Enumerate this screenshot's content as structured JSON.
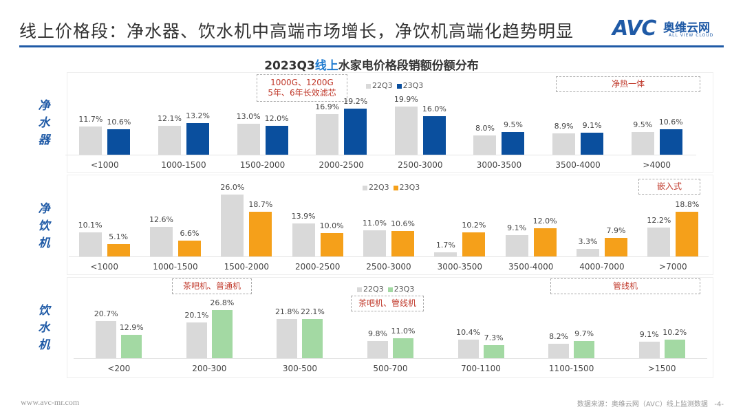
{
  "header": {
    "title": "线上价格段：净水器、饮水机中高端市场增长，净饮机高端化趋势明显",
    "logo": {
      "mark": "AVC",
      "cn": "奥维云网",
      "en": "ALL VIEW CLOUD"
    }
  },
  "subtitle": {
    "pre": "2023Q3",
    "highlight": "线上",
    "post": "水家电价格段销额份额分布"
  },
  "footer": {
    "url": "www.avc-mr.com",
    "source": "数据来源：奥维云网（AVC）线上监测数据",
    "page": "-4-"
  },
  "colors": {
    "prev": "#d9d9d9",
    "purifier": "#0a4f9e",
    "drinking_purifier": "#f5a01a",
    "dispenser": "#a3d9a3",
    "title_rule": "#1f5aa6"
  },
  "chart_data": [
    {
      "type": "bar",
      "row_label": "净水器",
      "legend": [
        "22Q3",
        "23Q3"
      ],
      "notes": [
        "1000G、1200G",
        "5年、6年长效滤芯",
        "净热一体"
      ],
      "categories": [
        "<1000",
        "1000-1500",
        "1500-2000",
        "2000-2500",
        "2500-3000",
        "3000-3500",
        "3500-4000",
        ">4000"
      ],
      "series": [
        {
          "name": "22Q3",
          "values": [
            11.7,
            12.1,
            13.0,
            16.9,
            19.9,
            8.0,
            8.9,
            9.5
          ]
        },
        {
          "name": "23Q3",
          "values": [
            10.6,
            13.2,
            12.0,
            19.2,
            16.0,
            9.5,
            9.1,
            10.6
          ]
        }
      ],
      "unit": "%"
    },
    {
      "type": "bar",
      "row_label": "净饮机",
      "legend": [
        "22Q3",
        "23Q3"
      ],
      "notes": [
        "嵌入式"
      ],
      "categories": [
        "<1000",
        "1000-1500",
        "1500-2000",
        "2000-2500",
        "2500-3000",
        "3000-3500",
        "3500-4000",
        "4000-7000",
        ">7000"
      ],
      "series": [
        {
          "name": "22Q3",
          "values": [
            10.1,
            12.6,
            26.0,
            13.9,
            11.0,
            1.7,
            9.1,
            3.3,
            12.2
          ]
        },
        {
          "name": "23Q3",
          "values": [
            5.1,
            6.6,
            18.7,
            10.0,
            10.6,
            10.2,
            12.0,
            7.9,
            18.8
          ]
        }
      ],
      "unit": "%"
    },
    {
      "type": "bar",
      "row_label": "饮水机",
      "legend": [
        "22Q3",
        "23Q3"
      ],
      "notes": [
        "茶吧机、普通机",
        "茶吧机、管线机",
        "管线机"
      ],
      "categories": [
        "<200",
        "200-300",
        "300-500",
        "500-700",
        "700-1100",
        "1100-1500",
        ">1500"
      ],
      "series": [
        {
          "name": "22Q3",
          "values": [
            20.7,
            20.1,
            21.8,
            9.8,
            10.4,
            8.2,
            9.1
          ]
        },
        {
          "name": "23Q3",
          "values": [
            12.9,
            26.8,
            22.1,
            11.0,
            7.3,
            9.7,
            10.2
          ]
        }
      ],
      "unit": "%"
    }
  ]
}
